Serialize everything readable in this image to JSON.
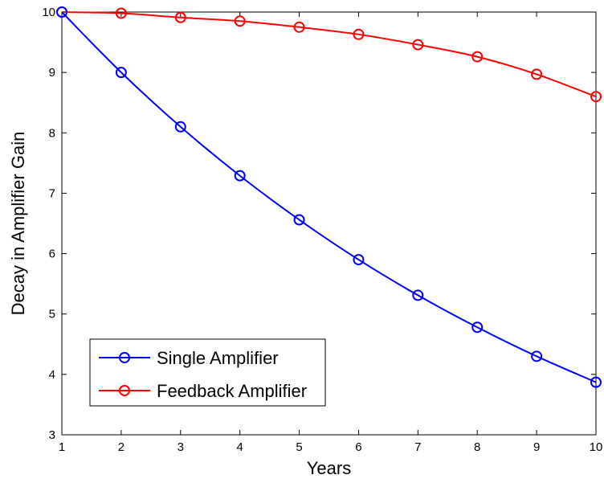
{
  "chart_data": {
    "type": "line",
    "xlabel": "Years",
    "ylabel": "Decay in Amplifier Gain",
    "xlim": [
      1,
      10
    ],
    "ylim": [
      3,
      10
    ],
    "xticks": [
      "1",
      "2",
      "3",
      "4",
      "5",
      "6",
      "7",
      "8",
      "9",
      "10"
    ],
    "yticks": [
      "3",
      "4",
      "5",
      "6",
      "7",
      "8",
      "9",
      "10"
    ],
    "grid": false,
    "legend_position": "bottom-left",
    "x": [
      1,
      2,
      3,
      4,
      5,
      6,
      7,
      8,
      9,
      10
    ],
    "series": [
      {
        "name": "Single Amplifier",
        "color": "#0000ff",
        "values": [
          10,
          9.0,
          8.1,
          7.29,
          6.56,
          5.9,
          5.31,
          4.78,
          4.3,
          3.87
        ]
      },
      {
        "name": "Feedback Amplifier",
        "color": "#ff0000",
        "values": [
          10,
          9.98,
          9.91,
          9.85,
          9.75,
          9.63,
          9.46,
          9.26,
          8.97,
          8.6
        ]
      }
    ]
  }
}
